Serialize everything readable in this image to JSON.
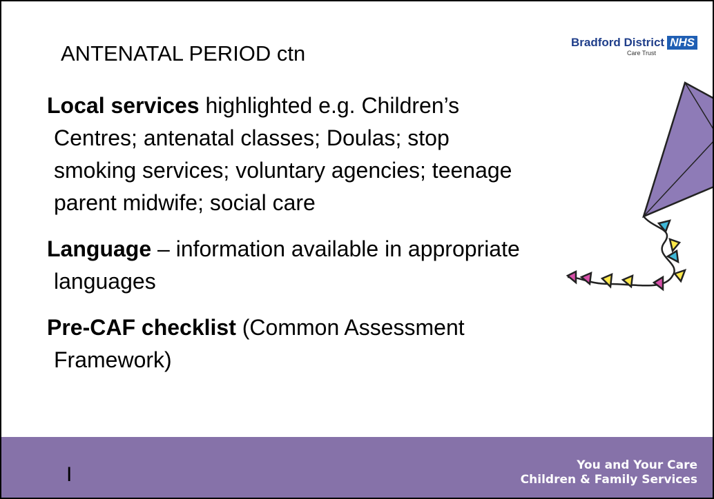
{
  "header": {
    "title": "ANTENATAL PERIOD ctn",
    "logo": {
      "org": "Bradford District",
      "badge": "NHS",
      "sub": "Care Trust"
    }
  },
  "items": [
    {
      "heading": "Local services",
      "text": "highlighted e.g. Children’s Centres; antenatal classes; Doulas; stop smoking services; voluntary agencies; teenage parent midwife; social care"
    },
    {
      "heading": "Language",
      "text": "– information available in appropriate languages"
    },
    {
      "heading": "Pre-CAF checklist",
      "text": "(Common Assessment Framework)"
    }
  ],
  "footer": {
    "line1": "You and Your Care",
    "line2": "Children & Family Services",
    "marker": "I"
  }
}
